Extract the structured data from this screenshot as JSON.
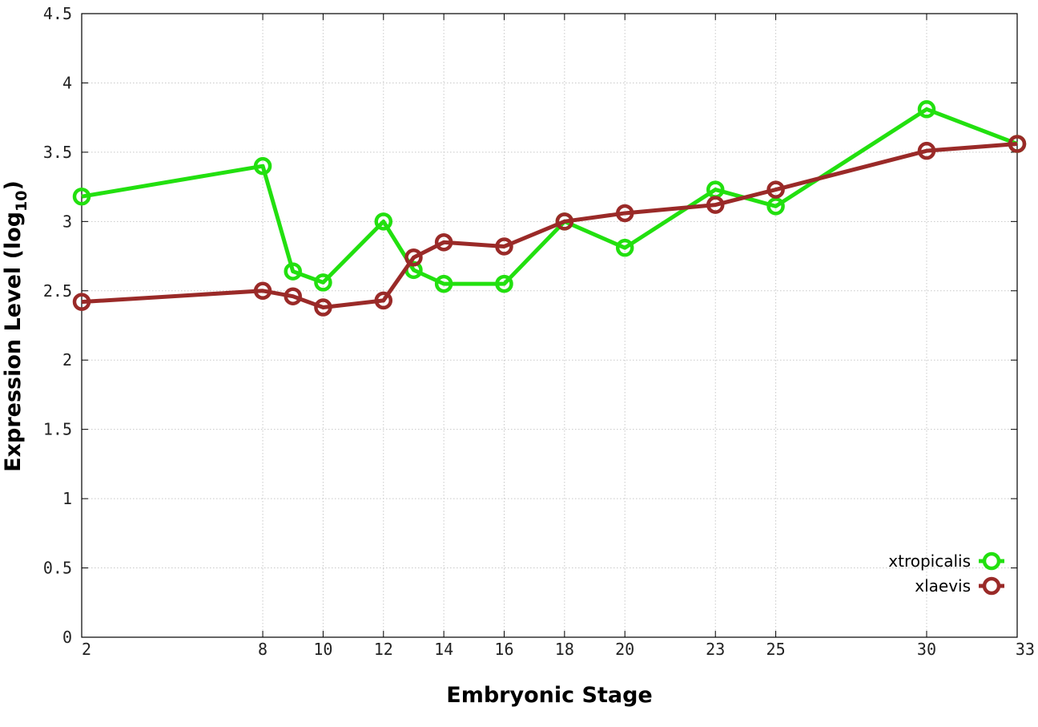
{
  "chart_data": {
    "type": "line",
    "xlabel": "Embryonic Stage",
    "ylabel": "Expression Level (log",
    "ylabel_sub": "10",
    "ylabel_close": ")",
    "xlim": [
      2,
      33
    ],
    "ylim": [
      0,
      4.5
    ],
    "x_ticks": [
      2,
      8,
      10,
      12,
      14,
      16,
      18,
      20,
      23,
      25,
      30,
      33
    ],
    "y_ticks": [
      0,
      0.5,
      1,
      1.5,
      2,
      2.5,
      3,
      3.5,
      4,
      4.5
    ],
    "y_tick_labels": [
      "0",
      "0.5",
      "1",
      "1.5",
      "2",
      "2.5",
      "3",
      "3.5",
      "4",
      "4.5"
    ],
    "grid": true,
    "legend_position": "bottom-right",
    "series": [
      {
        "name": "xtropicalis",
        "color": "#22e00f",
        "x": [
          2,
          8,
          9,
          10,
          12,
          13,
          14,
          16,
          18,
          20,
          23,
          25,
          30,
          33
        ],
        "y": [
          3.18,
          3.4,
          2.64,
          2.56,
          3.0,
          2.65,
          2.55,
          2.55,
          3.0,
          2.81,
          3.23,
          3.11,
          3.81,
          3.56
        ]
      },
      {
        "name": "xlaevis",
        "color": "#9a2a28",
        "x": [
          2,
          8,
          9,
          10,
          12,
          13,
          14,
          16,
          18,
          20,
          23,
          25,
          30,
          33
        ],
        "y": [
          2.42,
          2.5,
          2.46,
          2.38,
          2.43,
          2.74,
          2.85,
          2.82,
          3.0,
          3.06,
          3.12,
          3.23,
          3.51,
          3.56
        ]
      }
    ]
  }
}
